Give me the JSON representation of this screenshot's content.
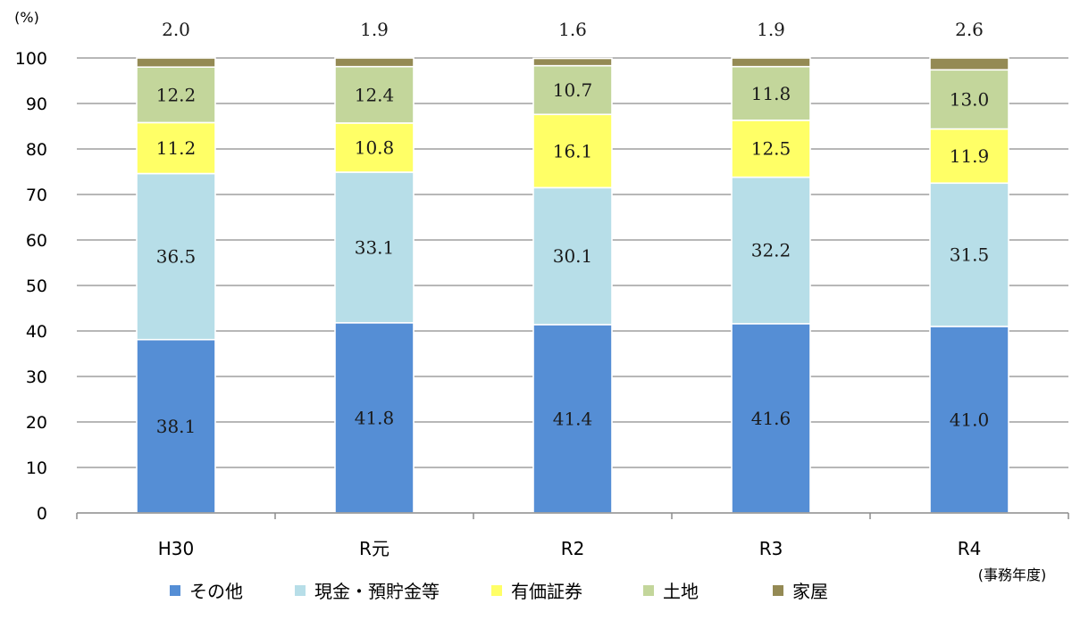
{
  "chart_data": {
    "type": "bar",
    "stacked": true,
    "ylabel": "(%)",
    "xlabel": "(事務年度)",
    "ylim": [
      0,
      100
    ],
    "yticks": [
      0,
      10,
      20,
      30,
      40,
      50,
      60,
      70,
      80,
      90,
      100
    ],
    "grid": true,
    "legend_position": "bottom",
    "categories": [
      "H30",
      "R元",
      "R2",
      "R3",
      "R4"
    ],
    "series": [
      {
        "name": "その他",
        "color": "#558ED5",
        "values": [
          38.1,
          41.8,
          41.4,
          41.6,
          41.0
        ]
      },
      {
        "name": "現金・預貯金等",
        "color": "#B7DEE8",
        "values": [
          36.5,
          33.1,
          30.1,
          32.2,
          31.5
        ]
      },
      {
        "name": "有価証券",
        "color": "#FFFF66",
        "values": [
          11.2,
          10.8,
          16.1,
          12.5,
          11.9
        ]
      },
      {
        "name": "土地",
        "color": "#C3D69B",
        "values": [
          12.2,
          12.4,
          10.7,
          11.8,
          13.0
        ]
      },
      {
        "name": "家屋",
        "color": "#948A54",
        "values": [
          2.0,
          1.9,
          1.6,
          1.9,
          2.6
        ]
      }
    ]
  }
}
